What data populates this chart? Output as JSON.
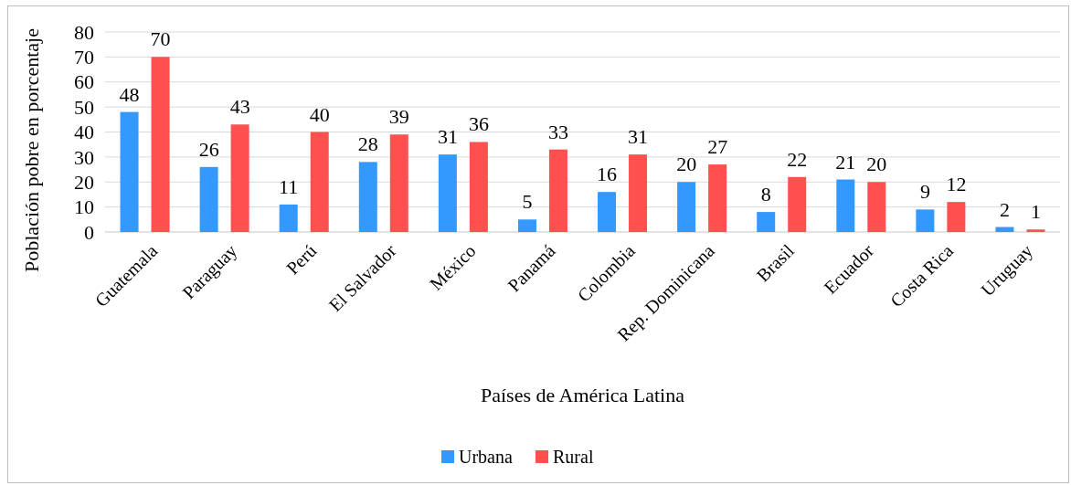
{
  "chart_data": {
    "type": "bar",
    "xlabel": "Países de América Latina",
    "ylabel": "Población pobre en porcentaje",
    "categories": [
      "Guatemala",
      "Paraguay",
      "Perú",
      "El Salvador",
      "México",
      "Panamá",
      "Colombia",
      "Rep. Dominicana",
      "Brasil",
      "Ecuador",
      "Costa Rica",
      "Uruguay"
    ],
    "series": [
      {
        "name": "Urbana",
        "color": "#3399ff",
        "values": [
          48,
          26,
          11,
          28,
          31,
          5,
          16,
          20,
          8,
          21,
          9,
          2
        ]
      },
      {
        "name": "Rural",
        "color": "#ff5050",
        "values": [
          70,
          43,
          40,
          39,
          36,
          33,
          31,
          27,
          22,
          20,
          12,
          1
        ]
      }
    ],
    "ylim": [
      0,
      80
    ],
    "yticks": [
      0,
      10,
      20,
      30,
      40,
      50,
      60,
      70,
      80
    ],
    "grid": "y",
    "data_labels": true,
    "legend": "bottom"
  }
}
